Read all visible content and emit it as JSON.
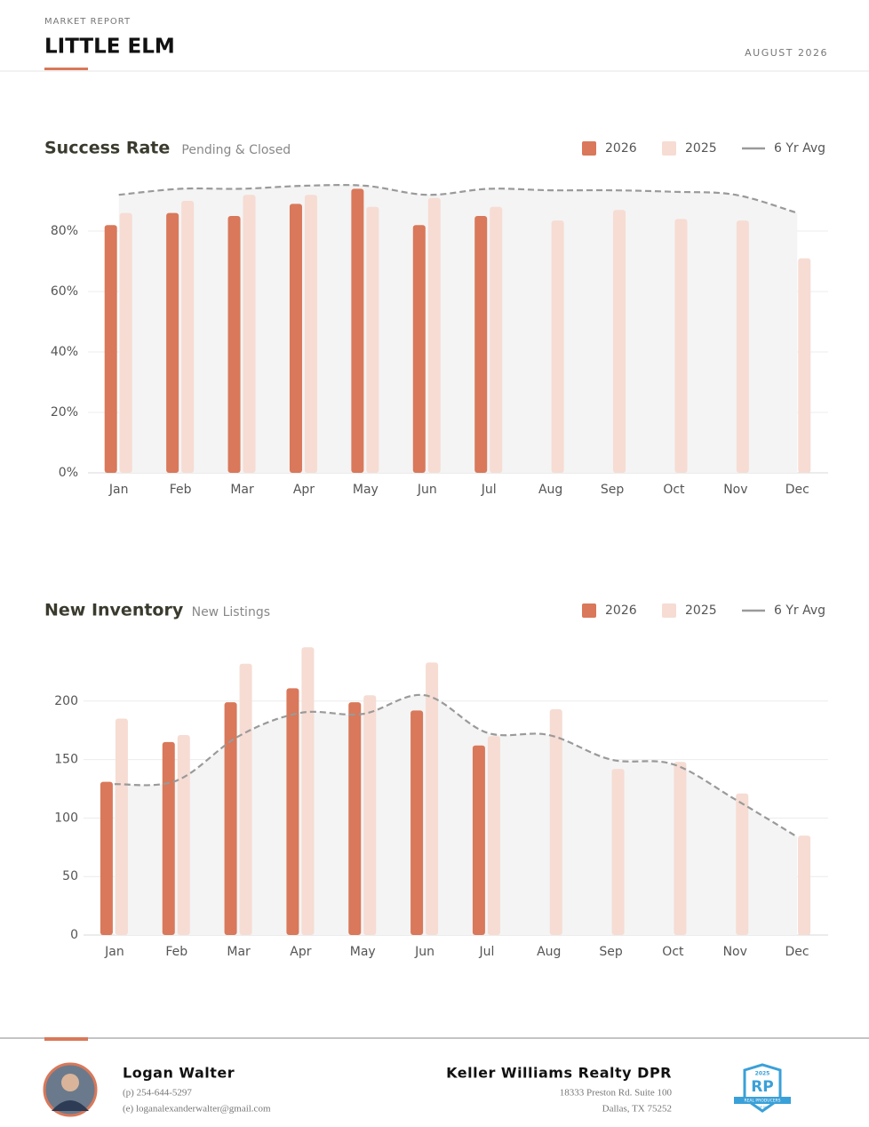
{
  "header": {
    "label": "MARKET REPORT",
    "title": "LITTLE ELM",
    "date": "AUGUST 2026"
  },
  "chart_data": [
    {
      "type": "bar",
      "title": "Success Rate",
      "subtitle": "Pending & Closed",
      "categories": [
        "Jan",
        "Feb",
        "Mar",
        "Apr",
        "May",
        "Jun",
        "Jul",
        "Aug",
        "Sep",
        "Oct",
        "Nov",
        "Dec"
      ],
      "series": [
        {
          "name": "2026",
          "color": "#d9785a",
          "values": [
            82,
            86,
            85,
            89,
            94,
            82,
            85,
            null,
            null,
            null,
            null,
            null
          ]
        },
        {
          "name": "2025",
          "color": "#f6dcd3",
          "values": [
            86,
            90,
            92,
            92,
            88,
            91,
            88,
            83.5,
            87,
            84,
            83.5,
            71
          ]
        },
        {
          "name": "6 Yr Avg",
          "type": "line",
          "color": "#9a9a9a",
          "values": [
            92,
            94,
            94,
            95,
            95,
            92,
            94,
            93.5,
            93.5,
            93,
            92,
            86
          ]
        }
      ],
      "ylim": [
        0,
        100
      ],
      "yticks": [
        {
          "value": 0,
          "label": "0%"
        },
        {
          "value": 20,
          "label": "20%"
        },
        {
          "value": 40,
          "label": "40%"
        },
        {
          "value": 60,
          "label": "60%"
        },
        {
          "value": 80,
          "label": "80%"
        }
      ],
      "grid": true,
      "legend": "top-right"
    },
    {
      "type": "bar",
      "title": "New Inventory",
      "subtitle": "New Listings",
      "categories": [
        "Jan",
        "Feb",
        "Mar",
        "Apr",
        "May",
        "Jun",
        "Jul",
        "Aug",
        "Sep",
        "Oct",
        "Nov",
        "Dec"
      ],
      "series": [
        {
          "name": "2026",
          "color": "#d9785a",
          "values": [
            131,
            165,
            199,
            211,
            199,
            192,
            162,
            null,
            null,
            null,
            null,
            null
          ]
        },
        {
          "name": "2025",
          "color": "#f6dcd3",
          "values": [
            185,
            171,
            232,
            246,
            205,
            233,
            170,
            193,
            142,
            148,
            121,
            85
          ]
        },
        {
          "name": "6 Yr Avg",
          "type": "line",
          "color": "#9a9a9a",
          "values": [
            129,
            132,
            170,
            190,
            189,
            205,
            173,
            171,
            150,
            146,
            116,
            84
          ]
        }
      ],
      "ylim": [
        0,
        250
      ],
      "yticks": [
        0,
        50,
        100,
        150,
        200
      ],
      "grid": true,
      "legend": "top-right"
    }
  ],
  "footer": {
    "agent": {
      "name": "Logan Walter",
      "phone": "(p) 254-644-5297",
      "email": "(e) loganalexanderwalter@gmail.com"
    },
    "company": {
      "name": "Keller Williams Realty DPR",
      "address": [
        "18333 Preston Rd. Suite 100",
        "Dallas, TX 75252"
      ]
    },
    "badge": {
      "year": "2025",
      "letters": "RP",
      "text": "REAL PRODUCERS",
      "rank": "TOP 500"
    }
  }
}
